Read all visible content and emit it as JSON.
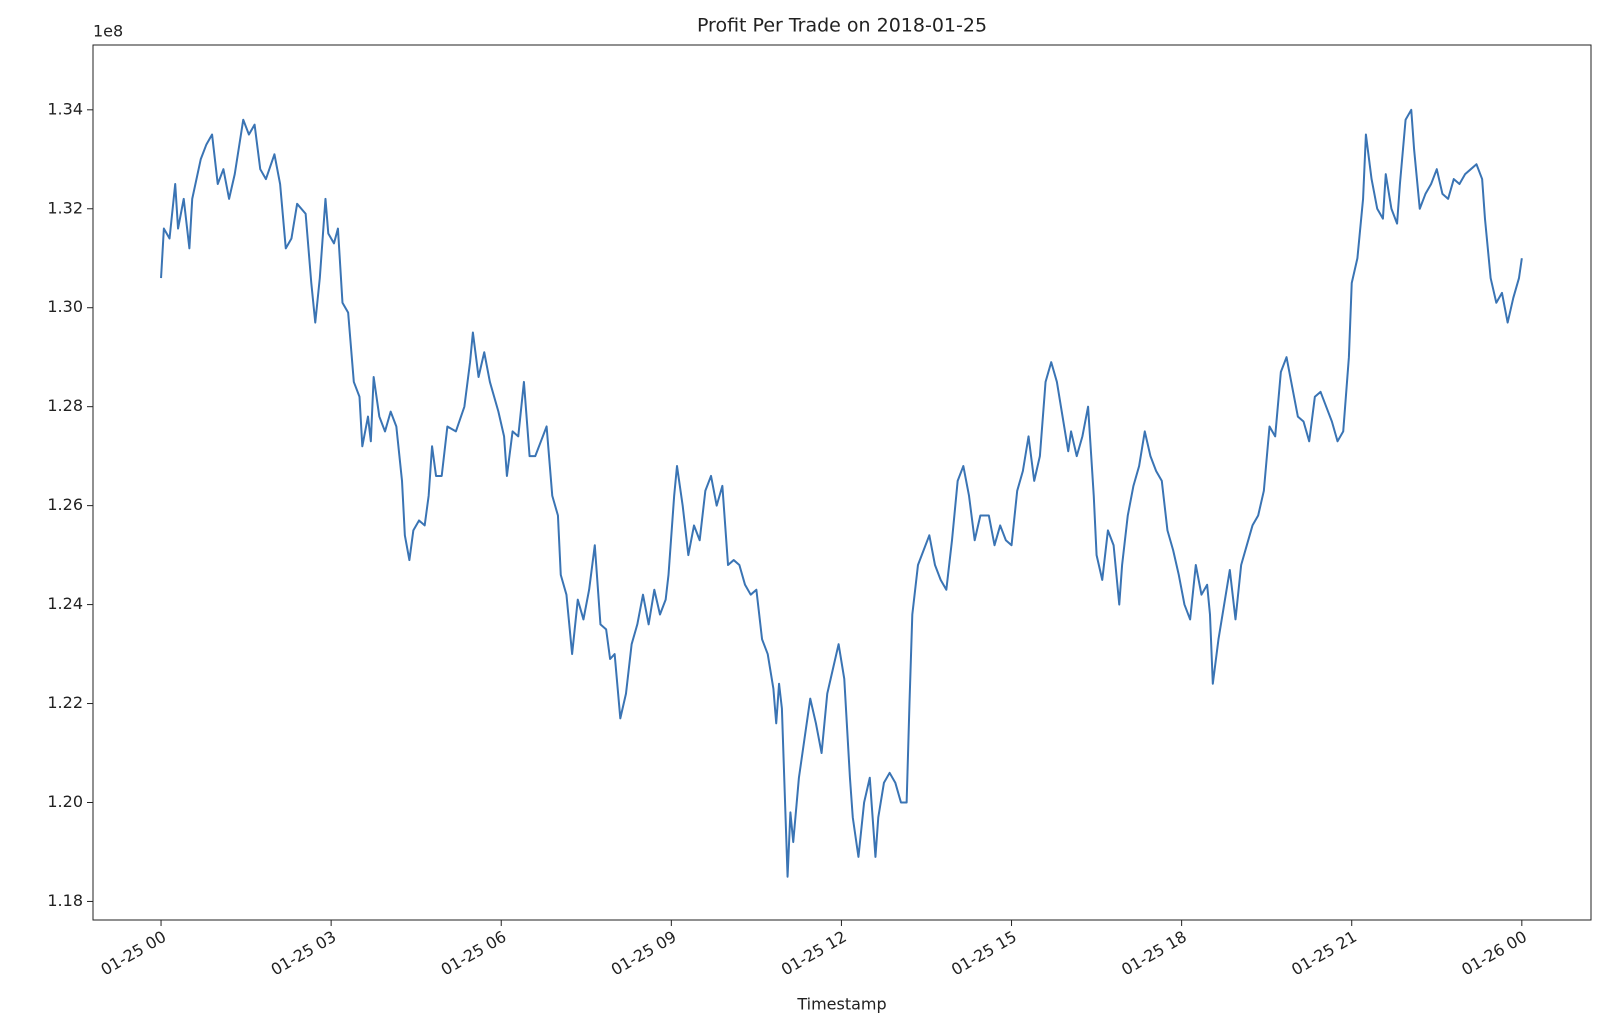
{
  "chart_data": {
    "type": "line",
    "title": "Profit Per Trade on 2018-01-25",
    "x_label": "Timestamp",
    "y_offset_label": "1e8",
    "color": "#3a74b4",
    "x": [
      0,
      0.05,
      0.15,
      0.25,
      0.3,
      0.4,
      0.5,
      0.55,
      0.7,
      0.8,
      0.9,
      1.0,
      1.1,
      1.2,
      1.3,
      1.45,
      1.55,
      1.65,
      1.75,
      1.85,
      2.0,
      2.1,
      2.2,
      2.3,
      2.4,
      2.55,
      2.6,
      2.65,
      2.72,
      2.8,
      2.9,
      2.95,
      3.05,
      3.12,
      3.2,
      3.3,
      3.4,
      3.5,
      3.55,
      3.65,
      3.7,
      3.75,
      3.85,
      3.95,
      4.05,
      4.15,
      4.25,
      4.3,
      4.38,
      4.45,
      4.55,
      4.65,
      4.72,
      4.78,
      4.85,
      4.95,
      5.05,
      5.2,
      5.35,
      5.45,
      5.5,
      5.6,
      5.7,
      5.8,
      5.95,
      6.05,
      6.1,
      6.2,
      6.3,
      6.4,
      6.5,
      6.6,
      6.7,
      6.8,
      6.9,
      7.0,
      7.05,
      7.15,
      7.25,
      7.35,
      7.45,
      7.55,
      7.65,
      7.75,
      7.85,
      7.92,
      8.0,
      8.1,
      8.2,
      8.3,
      8.4,
      8.5,
      8.6,
      8.7,
      8.8,
      8.9,
      8.95,
      9.05,
      9.1,
      9.2,
      9.3,
      9.4,
      9.5,
      9.6,
      9.7,
      9.8,
      9.9,
      10.0,
      10.1,
      10.2,
      10.3,
      10.4,
      10.5,
      10.6,
      10.7,
      10.8,
      10.85,
      10.9,
      10.95,
      11.0,
      11.05,
      11.1,
      11.15,
      11.25,
      11.35,
      11.45,
      11.55,
      11.65,
      11.75,
      11.85,
      11.95,
      12.05,
      12.1,
      12.15,
      12.2,
      12.3,
      12.4,
      12.5,
      12.6,
      12.65,
      12.75,
      12.85,
      12.95,
      13.05,
      13.15,
      13.2,
      13.25,
      13.35,
      13.45,
      13.55,
      13.65,
      13.75,
      13.85,
      13.95,
      14.05,
      14.15,
      14.25,
      14.35,
      14.45,
      14.6,
      14.7,
      14.8,
      14.9,
      15.0,
      15.1,
      15.2,
      15.3,
      15.4,
      15.5,
      15.6,
      15.7,
      15.8,
      15.9,
      16.0,
      16.05,
      16.15,
      16.25,
      16.35,
      16.45,
      16.5,
      16.6,
      16.7,
      16.8,
      16.9,
      16.95,
      17.05,
      17.15,
      17.25,
      17.35,
      17.45,
      17.55,
      17.65,
      17.75,
      17.85,
      17.95,
      18.05,
      18.15,
      18.25,
      18.35,
      18.45,
      18.5,
      18.55,
      18.65,
      18.75,
      18.85,
      18.95,
      19.05,
      19.15,
      19.25,
      19.35,
      19.45,
      19.55,
      19.65,
      19.75,
      19.85,
      19.95,
      20.05,
      20.15,
      20.25,
      20.35,
      20.45,
      20.55,
      20.65,
      20.75,
      20.85,
      20.95,
      21.0,
      21.1,
      21.2,
      21.25,
      21.35,
      21.45,
      21.55,
      21.6,
      21.7,
      21.8,
      21.85,
      21.95,
      22.05,
      22.1,
      22.2,
      22.3,
      22.4,
      22.5,
      22.6,
      22.7,
      22.8,
      22.9,
      23.0,
      23.1,
      23.2,
      23.3,
      23.35,
      23.45,
      23.55,
      23.65,
      23.75,
      23.85,
      23.95,
      24.0
    ],
    "values": [
      1.306,
      1.316,
      1.314,
      1.325,
      1.316,
      1.322,
      1.312,
      1.322,
      1.33,
      1.333,
      1.335,
      1.325,
      1.328,
      1.322,
      1.327,
      1.338,
      1.335,
      1.337,
      1.328,
      1.326,
      1.331,
      1.325,
      1.312,
      1.314,
      1.321,
      1.319,
      1.312,
      1.305,
      1.297,
      1.306,
      1.322,
      1.315,
      1.313,
      1.316,
      1.301,
      1.299,
      1.285,
      1.282,
      1.272,
      1.278,
      1.273,
      1.286,
      1.278,
      1.275,
      1.279,
      1.276,
      1.265,
      1.254,
      1.249,
      1.255,
      1.257,
      1.256,
      1.262,
      1.272,
      1.266,
      1.266,
      1.276,
      1.275,
      1.28,
      1.289,
      1.295,
      1.286,
      1.291,
      1.285,
      1.279,
      1.274,
      1.266,
      1.275,
      1.274,
      1.285,
      1.27,
      1.27,
      1.273,
      1.276,
      1.262,
      1.258,
      1.246,
      1.242,
      1.23,
      1.241,
      1.237,
      1.243,
      1.252,
      1.236,
      1.235,
      1.229,
      1.23,
      1.217,
      1.222,
      1.232,
      1.236,
      1.242,
      1.236,
      1.243,
      1.238,
      1.241,
      1.246,
      1.262,
      1.268,
      1.26,
      1.25,
      1.256,
      1.253,
      1.263,
      1.266,
      1.26,
      1.264,
      1.248,
      1.249,
      1.248,
      1.244,
      1.242,
      1.243,
      1.233,
      1.23,
      1.223,
      1.216,
      1.224,
      1.219,
      1.202,
      1.185,
      1.198,
      1.192,
      1.205,
      1.213,
      1.221,
      1.216,
      1.21,
      1.222,
      1.227,
      1.232,
      1.225,
      1.215,
      1.205,
      1.197,
      1.189,
      1.2,
      1.205,
      1.189,
      1.197,
      1.204,
      1.206,
      1.204,
      1.2,
      1.2,
      1.22,
      1.238,
      1.248,
      1.251,
      1.254,
      1.248,
      1.245,
      1.243,
      1.253,
      1.265,
      1.268,
      1.262,
      1.253,
      1.258,
      1.258,
      1.252,
      1.256,
      1.253,
      1.252,
      1.263,
      1.267,
      1.274,
      1.265,
      1.27,
      1.285,
      1.289,
      1.285,
      1.278,
      1.271,
      1.275,
      1.27,
      1.274,
      1.28,
      1.262,
      1.25,
      1.245,
      1.255,
      1.252,
      1.24,
      1.248,
      1.258,
      1.264,
      1.268,
      1.275,
      1.27,
      1.267,
      1.265,
      1.255,
      1.251,
      1.246,
      1.24,
      1.237,
      1.248,
      1.242,
      1.244,
      1.238,
      1.224,
      1.233,
      1.24,
      1.247,
      1.237,
      1.248,
      1.252,
      1.256,
      1.258,
      1.263,
      1.276,
      1.274,
      1.287,
      1.29,
      1.284,
      1.278,
      1.277,
      1.273,
      1.282,
      1.283,
      1.28,
      1.277,
      1.273,
      1.275,
      1.29,
      1.305,
      1.31,
      1.322,
      1.335,
      1.326,
      1.32,
      1.318,
      1.327,
      1.32,
      1.317,
      1.325,
      1.338,
      1.34,
      1.332,
      1.32,
      1.323,
      1.325,
      1.328,
      1.323,
      1.322,
      1.326,
      1.325,
      1.327,
      1.328,
      1.329,
      1.326,
      1.318,
      1.306,
      1.301,
      1.303,
      1.297,
      1.302,
      1.306,
      1.31
    ],
    "xlim": [
      -1.2,
      25.22
    ],
    "xticks": [
      {
        "value": 0,
        "label": "01-25 00"
      },
      {
        "value": 3,
        "label": "01-25 03"
      },
      {
        "value": 6,
        "label": "01-25 06"
      },
      {
        "value": 9,
        "label": "01-25 09"
      },
      {
        "value": 12,
        "label": "01-25 12"
      },
      {
        "value": 15,
        "label": "01-25 15"
      },
      {
        "value": 18,
        "label": "01-25 18"
      },
      {
        "value": 21,
        "label": "01-25 21"
      },
      {
        "value": 24,
        "label": "01-26 00"
      }
    ],
    "ylim": [
      1.17625,
      1.3531
    ],
    "yticks": [
      1.18,
      {
        "value": 1.2,
        "label": "1.20"
      },
      1.22,
      1.24,
      1.26,
      1.28,
      {
        "value": 1.3,
        "label": "1.30"
      },
      1.32,
      1.34
    ],
    "grid": false
  }
}
